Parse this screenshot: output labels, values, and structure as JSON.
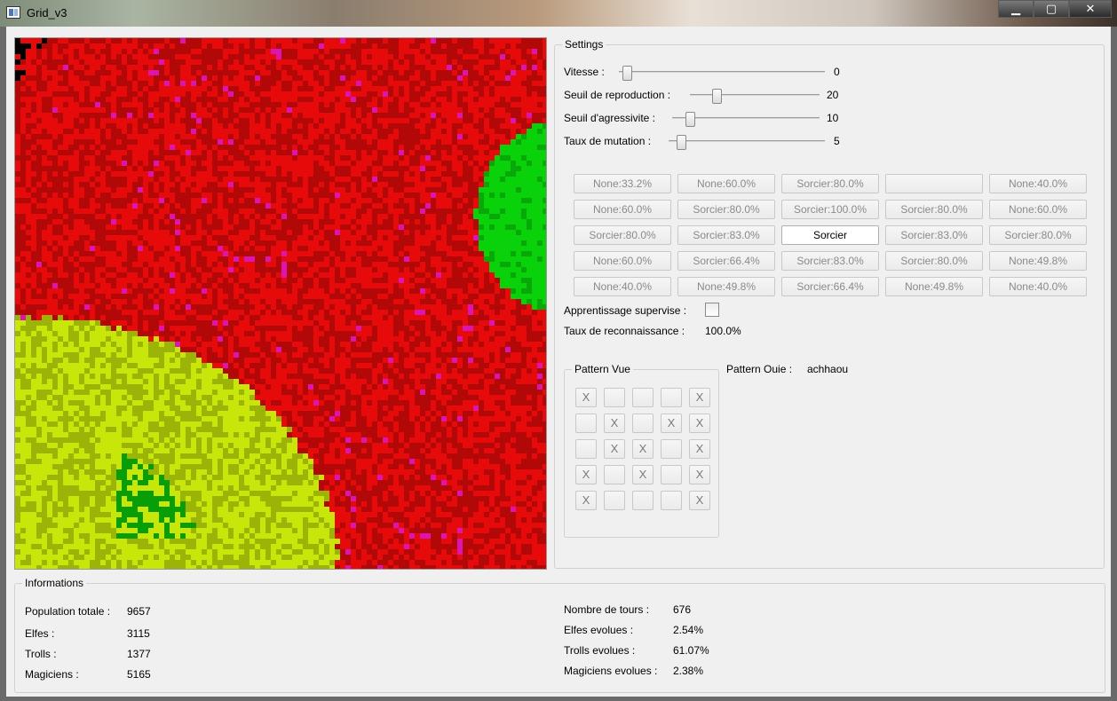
{
  "window": {
    "title": "Grid_v3",
    "minimize": "▁",
    "maximize": "▢",
    "close": "✕"
  },
  "settings": {
    "title": "Settings",
    "sliders": [
      {
        "label": "Vitesse :",
        "value": "0"
      },
      {
        "label": "Seuil de reproduction :",
        "value": "20"
      },
      {
        "label": "Seuil d'agressivite :",
        "value": "10"
      },
      {
        "label": "Taux de mutation :",
        "value": "5"
      }
    ],
    "neighbors": [
      [
        "None:33.2%",
        "None:60.0%",
        "Sorcier:80.0%",
        "",
        "None:40.0%"
      ],
      [
        "None:60.0%",
        "Sorcier:80.0%",
        "Sorcier:100.0%",
        "Sorcier:80.0%",
        "None:60.0%"
      ],
      [
        "Sorcier:80.0%",
        "Sorcier:83.0%",
        "Sorcier",
        "Sorcier:83.0%",
        "Sorcier:80.0%"
      ],
      [
        "None:60.0%",
        "Sorcier:66.4%",
        "Sorcier:83.0%",
        "Sorcier:80.0%",
        "None:49.8%"
      ],
      [
        "None:40.0%",
        "None:49.8%",
        "Sorcier:66.4%",
        "None:49.8%",
        "None:40.0%"
      ]
    ],
    "supervised_label": "Apprentissage supervise :",
    "recognition_label": "Taux de reconnaissance :",
    "recognition_value": "100.0%",
    "pattern_vue": {
      "title": "Pattern Vue",
      "cells": [
        [
          "X",
          "",
          "",
          "",
          "X"
        ],
        [
          "",
          "X",
          "",
          "X",
          "X"
        ],
        [
          "",
          "X",
          "X",
          "",
          "X"
        ],
        [
          "X",
          "",
          "X",
          "",
          "X"
        ],
        [
          "X",
          "",
          "",
          "",
          "X"
        ]
      ]
    },
    "pattern_ouie_label": "Pattern Ouie :",
    "pattern_ouie_value": "achhaou"
  },
  "info": {
    "title": "Informations",
    "left": [
      {
        "label": "Population totale :",
        "value": "9657"
      },
      {
        "label": "Elfes :",
        "value": "3115"
      },
      {
        "label": "Trolls :",
        "value": "1377"
      },
      {
        "label": "Magiciens :",
        "value": "5165"
      }
    ],
    "right": [
      {
        "label": "Nombre de tours :",
        "value": "676"
      },
      {
        "label": "Elfes evolues :",
        "value": "2.54%"
      },
      {
        "label": "Trolls evolues :",
        "value": "61.07%"
      },
      {
        "label": "Magiciens evolues :",
        "value": "2.38%"
      }
    ]
  },
  "colors": {
    "elfes": "#0a1ee6",
    "trolls": "#c8e60a",
    "magiciens": "#e60a0a",
    "evolved_elfes": "#14a0c8",
    "evolved_trolls": "#0ad20a",
    "evolved_magiciens": "#dc14b4",
    "empty": "#000000"
  }
}
